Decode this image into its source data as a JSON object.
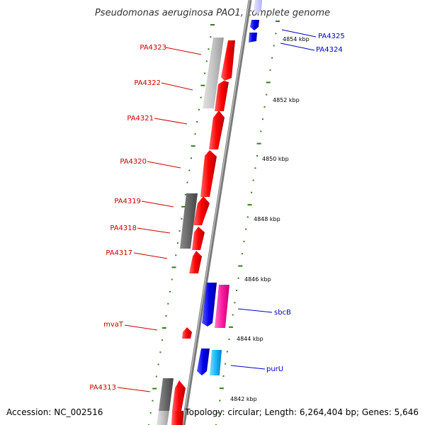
{
  "title": "Pseudomonas aeruginosa PAO1, complete genome",
  "footer": {
    "accession": "Accession: NC_002516",
    "topology": "Topology: circular; Length: 6,264,404 bp; Genes: 5,646"
  },
  "colors": {
    "backbone": "#8c8c8c",
    "tick": "#2e7d1a",
    "label_left": "#cc0000",
    "label_right": "#0000cc",
    "gene_red": "#ff0000",
    "gene_blue": "#0000ee",
    "gene_grey": "#bfbfbf",
    "gene_dark": "#6a6a6a",
    "gene_magenta": "#ff1aa0",
    "gene_cyan": "#1ab8ff",
    "gene_pale": "#c8c8ff"
  },
  "scale": {
    "labels": [
      {
        "kbp": 4854,
        "text": "4854 kbp"
      },
      {
        "kbp": 4852,
        "text": "4852 kbp"
      },
      {
        "kbp": 4850,
        "text": "4850 kbp"
      },
      {
        "kbp": 4848,
        "text": "4848 kbp"
      },
      {
        "kbp": 4846,
        "text": "4846 kbp"
      },
      {
        "kbp": 4844,
        "text": "4844 kbp"
      },
      {
        "kbp": 4842,
        "text": "4842 kbp"
      }
    ]
  },
  "genes": [
    {
      "name": "PA4325",
      "strand": "plus",
      "color": "gene_blue"
    },
    {
      "name": "PA4324",
      "strand": "plus",
      "color": "gene_blue"
    },
    {
      "name": "PA4323",
      "strand": "minus",
      "color": "gene_red"
    },
    {
      "name": "PA4322",
      "strand": "minus",
      "color": "gene_red"
    },
    {
      "name": "PA4321",
      "strand": "minus",
      "color": "gene_red"
    },
    {
      "name": "PA4320",
      "strand": "minus",
      "color": "gene_red"
    },
    {
      "name": "PA4319",
      "strand": "minus",
      "color": "gene_red"
    },
    {
      "name": "PA4318",
      "strand": "minus",
      "color": "gene_red"
    },
    {
      "name": "PA4317",
      "strand": "minus",
      "color": "gene_red"
    },
    {
      "name": "sbcB",
      "strand": "plus",
      "color": "gene_magenta"
    },
    {
      "name": "mvaT",
      "strand": "minus",
      "color": "gene_red"
    },
    {
      "name": "purU",
      "strand": "plus",
      "color": "gene_cyan"
    },
    {
      "name": "PA4313",
      "strand": "minus",
      "color": "gene_red"
    }
  ]
}
